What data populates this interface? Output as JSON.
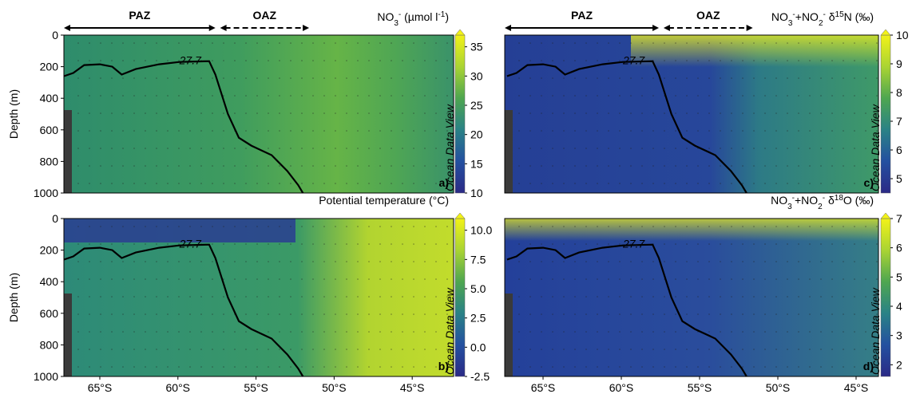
{
  "chart_data": [
    {
      "type": "section",
      "panel_label": "a)",
      "title": [
        {
          "text": "NO",
          "shift": "base"
        },
        {
          "text": "3",
          "shift": "sub"
        },
        {
          "text": "-",
          "shift": "sup"
        },
        {
          "text": " (µmol l",
          "shift": "base"
        },
        {
          "text": "-1",
          "shift": "sup"
        },
        {
          "text": ")",
          "shift": "base"
        }
      ],
      "ylabel": "Depth (m)",
      "ylim": [
        0,
        1000
      ],
      "yticks": [
        0,
        200,
        400,
        600,
        800,
        1000
      ],
      "xlim": [
        -67.3,
        -42.35
      ],
      "zones": [
        {
          "label": "PAZ",
          "from": -67.3,
          "to": -57.6,
          "style": "solid"
        },
        {
          "label": "OAZ",
          "from": -57.3,
          "to": -51.6,
          "style": "dashed"
        }
      ],
      "isopycnal": {
        "level": 27.7,
        "lat": [
          -67.3,
          -66.7,
          -66.0,
          -65.0,
          -64.2,
          -63.6,
          -62.7,
          -61.2,
          -59.9,
          -58.0,
          -57.6,
          -56.8,
          -56.1,
          -55.3,
          -54.0,
          -53.0,
          -52.3,
          -52.0
        ],
        "depth": [
          260,
          240,
          190,
          185,
          200,
          250,
          215,
          185,
          170,
          165,
          250,
          500,
          650,
          700,
          760,
          860,
          950,
          1000
        ]
      },
      "colorbar": {
        "lim": [
          10,
          37
        ],
        "ticks": [
          10,
          15,
          20,
          25,
          30,
          35
        ]
      },
      "colormap": [
        "#2b2a86",
        "#2450a0",
        "#2a8286",
        "#4ea650",
        "#aad433",
        "#f2f218"
      ],
      "watermark": "Ocean Data View"
    },
    {
      "type": "section",
      "panel_label": "b)",
      "title": [
        {
          "text": "Potential temperature (°C)",
          "shift": "base"
        }
      ],
      "ylabel": "Depth (m)",
      "ylim": [
        0,
        1000
      ],
      "yticks": [
        0,
        200,
        400,
        600,
        800,
        1000
      ],
      "xlim": [
        -67.3,
        -42.35
      ],
      "xticks": [
        {
          "value": -65,
          "label": "65°S"
        },
        {
          "value": -60,
          "label": "60°S"
        },
        {
          "value": -55,
          "label": "55°S"
        },
        {
          "value": -50,
          "label": "50°S"
        },
        {
          "value": -45,
          "label": "45°S"
        }
      ],
      "isopycnal": {
        "level": 27.7,
        "lat": [
          -67.3,
          -66.7,
          -66.0,
          -65.0,
          -64.2,
          -63.6,
          -62.7,
          -61.2,
          -59.9,
          -58.0,
          -57.6,
          -56.8,
          -56.1,
          -55.3,
          -54.0,
          -53.0,
          -52.3,
          -52.0
        ],
        "depth": [
          260,
          240,
          190,
          185,
          200,
          250,
          215,
          185,
          170,
          165,
          250,
          500,
          650,
          700,
          760,
          860,
          950,
          1000
        ]
      },
      "colorbar": {
        "lim": [
          -2.5,
          11
        ],
        "ticks": [
          -2.5,
          {
            "value": 0,
            "label": "0.0"
          },
          2.5,
          {
            "value": 5,
            "label": "5.0"
          },
          7.5,
          {
            "value": 10,
            "label": "10.0"
          }
        ]
      },
      "colormap": [
        "#2b2a86",
        "#2450a0",
        "#2a8286",
        "#4ea650",
        "#aad433",
        "#f2f218"
      ],
      "watermark": "Ocean Data View"
    },
    {
      "type": "section",
      "panel_label": "c)",
      "title": [
        {
          "text": "NO",
          "shift": "base"
        },
        {
          "text": "3",
          "shift": "sub"
        },
        {
          "text": "-",
          "shift": "sup"
        },
        {
          "text": "+NO",
          "shift": "base"
        },
        {
          "text": "2",
          "shift": "sub"
        },
        {
          "text": "-",
          "shift": "sup"
        },
        {
          "text": " δ",
          "shift": "base"
        },
        {
          "text": "15",
          "shift": "sup"
        },
        {
          "text": "N (‰)",
          "shift": "base"
        }
      ],
      "ylim": [
        0,
        1000
      ],
      "xlim": [
        -67.45,
        -43.57
      ],
      "zones": [
        {
          "label": "PAZ",
          "from": -67.45,
          "to": -57.6,
          "style": "solid"
        },
        {
          "label": "OAZ",
          "from": -57.3,
          "to": -51.6,
          "style": "dashed"
        }
      ],
      "isopycnal": {
        "level": 27.7,
        "lat": [
          -67.3,
          -66.7,
          -66.0,
          -65.0,
          -64.2,
          -63.6,
          -62.7,
          -61.2,
          -59.9,
          -58.0,
          -57.6,
          -56.8,
          -56.1,
          -55.3,
          -54.0,
          -53.0,
          -52.3,
          -52.0
        ],
        "depth": [
          260,
          240,
          190,
          185,
          200,
          250,
          215,
          185,
          170,
          165,
          250,
          500,
          650,
          700,
          760,
          860,
          950,
          1000
        ]
      },
      "colorbar": {
        "lim": [
          4.5,
          10
        ],
        "ticks": [
          5,
          6,
          7,
          8,
          9,
          10
        ]
      },
      "colormap": [
        "#2b2a86",
        "#2450a0",
        "#2a8286",
        "#4ea650",
        "#aad433",
        "#f2f218"
      ],
      "watermark": "Ocean Data View"
    },
    {
      "type": "section",
      "panel_label": "d)",
      "title": [
        {
          "text": "NO",
          "shift": "base"
        },
        {
          "text": "3",
          "shift": "sub"
        },
        {
          "text": "-",
          "shift": "sup"
        },
        {
          "text": "+NO",
          "shift": "base"
        },
        {
          "text": "2",
          "shift": "sub"
        },
        {
          "text": "-",
          "shift": "sup"
        },
        {
          "text": " δ",
          "shift": "base"
        },
        {
          "text": "18",
          "shift": "sup"
        },
        {
          "text": "O (‰)",
          "shift": "base"
        }
      ],
      "ylim": [
        0,
        1000
      ],
      "xlim": [
        -67.45,
        -43.57
      ],
      "xticks": [
        {
          "value": -65,
          "label": "65°S"
        },
        {
          "value": -60,
          "label": "60°S"
        },
        {
          "value": -55,
          "label": "55°S"
        },
        {
          "value": -50,
          "label": "50°S"
        },
        {
          "value": -45,
          "label": "45°S"
        }
      ],
      "isopycnal": {
        "level": 27.7,
        "lat": [
          -67.3,
          -66.7,
          -66.0,
          -65.0,
          -64.2,
          -63.6,
          -62.7,
          -61.2,
          -59.9,
          -58.0,
          -57.6,
          -56.8,
          -56.1,
          -55.3,
          -54.0,
          -53.0,
          -52.3,
          -52.0
        ],
        "depth": [
          260,
          240,
          190,
          185,
          200,
          250,
          215,
          185,
          170,
          165,
          250,
          500,
          650,
          700,
          760,
          860,
          950,
          1000
        ]
      },
      "colorbar": {
        "lim": [
          1.6,
          7
        ],
        "ticks": [
          2,
          3,
          4,
          5,
          6,
          7
        ]
      },
      "colormap": [
        "#2b2a86",
        "#2450a0",
        "#2a8286",
        "#4ea650",
        "#aad433",
        "#f2f218"
      ],
      "watermark": "Ocean Data View"
    }
  ]
}
